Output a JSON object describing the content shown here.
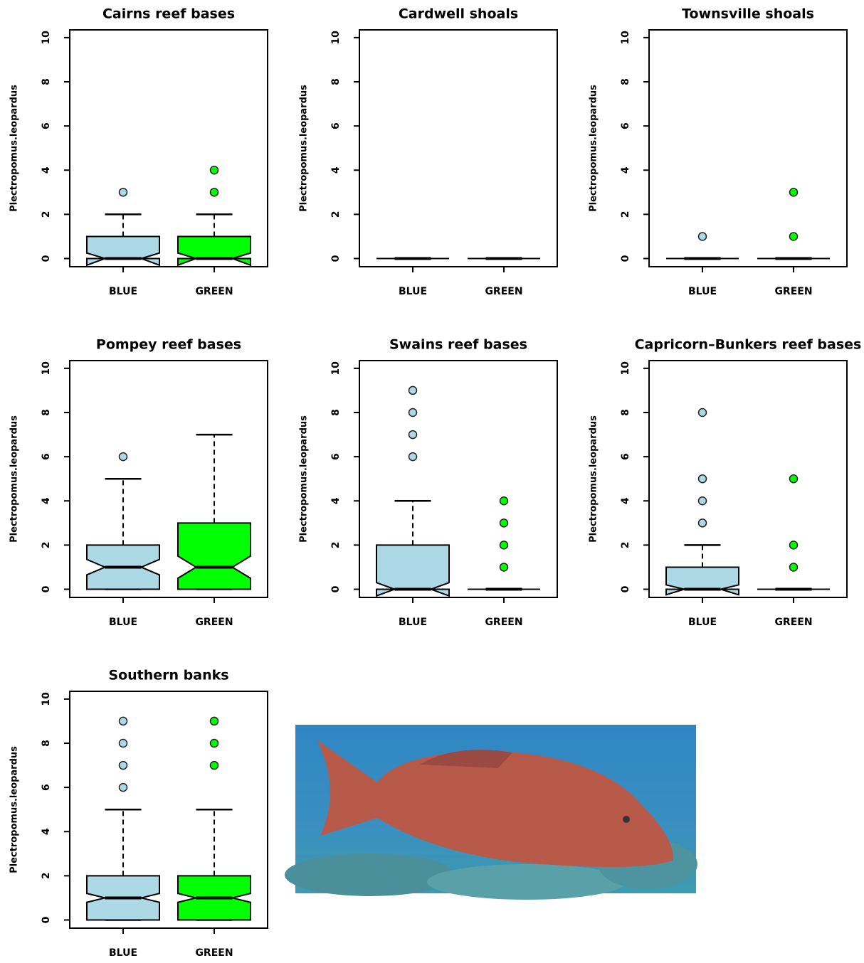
{
  "chart_data": [
    {
      "type": "box",
      "title": "Cairns reef bases",
      "ylabel": "Plectropomus.leopardus",
      "ylim": [
        -0.37,
        10.35
      ],
      "yticks": [
        0,
        2,
        4,
        6,
        8,
        10
      ],
      "series": [
        {
          "name": "BLUE",
          "color": "#add8e6",
          "whisker_low": 0,
          "q1": 0,
          "median": 0,
          "q3": 1,
          "whisker_high": 2,
          "notch_low": -0.3,
          "notch_high": 0.25,
          "outliers": [
            3
          ]
        },
        {
          "name": "GREEN",
          "color": "#00ff00",
          "whisker_low": 0,
          "q1": 0,
          "median": 0,
          "q3": 1,
          "whisker_high": 2,
          "notch_low": -0.3,
          "notch_high": 0.25,
          "outliers": [
            4,
            3
          ]
        }
      ]
    },
    {
      "type": "box",
      "title": "Cardwell shoals",
      "ylabel": "Plectropomus.leopardus",
      "ylim": [
        -0.37,
        10.35
      ],
      "yticks": [
        0,
        2,
        4,
        6,
        8,
        10
      ],
      "series": [
        {
          "name": "BLUE",
          "color": "#add8e6",
          "whisker_low": 0,
          "q1": 0,
          "median": 0,
          "q3": 0,
          "whisker_high": 0,
          "notch_low": 0,
          "notch_high": 0,
          "outliers": []
        },
        {
          "name": "GREEN",
          "color": "#00ff00",
          "whisker_low": 0,
          "q1": 0,
          "median": 0,
          "q3": 0,
          "whisker_high": 0,
          "notch_low": 0,
          "notch_high": 0,
          "outliers": []
        }
      ]
    },
    {
      "type": "box",
      "title": "Townsville shoals",
      "ylabel": "Plectropomus.leopardus",
      "ylim": [
        -0.37,
        10.35
      ],
      "yticks": [
        0,
        2,
        4,
        6,
        8,
        10
      ],
      "series": [
        {
          "name": "BLUE",
          "color": "#add8e6",
          "whisker_low": 0,
          "q1": 0,
          "median": 0,
          "q3": 0,
          "whisker_high": 0,
          "notch_low": 0,
          "notch_high": 0,
          "outliers": [
            1
          ]
        },
        {
          "name": "GREEN",
          "color": "#00ff00",
          "whisker_low": 0,
          "q1": 0,
          "median": 0,
          "q3": 0,
          "whisker_high": 0,
          "notch_low": 0,
          "notch_high": 0,
          "outliers": [
            3,
            1
          ]
        }
      ]
    },
    {
      "type": "box",
      "title": "Pompey reef bases",
      "ylabel": "Plectropomus.leopardus",
      "ylim": [
        -0.37,
        10.35
      ],
      "yticks": [
        0,
        2,
        4,
        6,
        8,
        10
      ],
      "series": [
        {
          "name": "BLUE",
          "color": "#add8e6",
          "whisker_low": 0,
          "q1": 0,
          "median": 1,
          "q3": 2,
          "whisker_high": 5,
          "notch_low": 0.65,
          "notch_high": 1.35,
          "outliers": [
            6
          ]
        },
        {
          "name": "GREEN",
          "color": "#00ff00",
          "whisker_low": 0,
          "q1": 0,
          "median": 1,
          "q3": 3,
          "whisker_high": 7,
          "notch_low": 0.5,
          "notch_high": 1.5,
          "outliers": []
        }
      ]
    },
    {
      "type": "box",
      "title": "Swains reef bases",
      "ylabel": "Plectropomus.leopardus",
      "ylim": [
        -0.37,
        10.35
      ],
      "yticks": [
        0,
        2,
        4,
        6,
        8,
        10
      ],
      "series": [
        {
          "name": "BLUE",
          "color": "#add8e6",
          "whisker_low": 0,
          "q1": 0,
          "median": 0,
          "q3": 2,
          "whisker_high": 4,
          "notch_low": -0.3,
          "notch_high": 0.3,
          "outliers": [
            9,
            8,
            7,
            6
          ]
        },
        {
          "name": "GREEN",
          "color": "#00ff00",
          "whisker_low": 0,
          "q1": 0,
          "median": 0,
          "q3": 0,
          "whisker_high": 0,
          "notch_low": 0,
          "notch_high": 0,
          "outliers": [
            4,
            3,
            2,
            1
          ]
        }
      ]
    },
    {
      "type": "box",
      "title": "Capricorn–Bunkers reef bases",
      "ylabel": "Plectropomus.leopardus",
      "ylim": [
        -0.37,
        10.35
      ],
      "yticks": [
        0,
        2,
        4,
        6,
        8,
        10
      ],
      "series": [
        {
          "name": "BLUE",
          "color": "#add8e6",
          "whisker_low": 0,
          "q1": 0,
          "median": 0,
          "q3": 1,
          "whisker_high": 2,
          "notch_low": -0.25,
          "notch_high": 0.2,
          "outliers": [
            8,
            5,
            4,
            3
          ]
        },
        {
          "name": "GREEN",
          "color": "#00ff00",
          "whisker_low": 0,
          "q1": 0,
          "median": 0,
          "q3": 0,
          "whisker_high": 0,
          "notch_low": 0,
          "notch_high": 0,
          "outliers": [
            5,
            2,
            1
          ]
        }
      ]
    },
    {
      "type": "box",
      "title": "Southern banks",
      "ylabel": "Plectropomus.leopardus",
      "ylim": [
        -0.37,
        10.35
      ],
      "yticks": [
        0,
        2,
        4,
        6,
        8,
        10
      ],
      "series": [
        {
          "name": "BLUE",
          "color": "#add8e6",
          "whisker_low": 0,
          "q1": 0,
          "median": 1,
          "q3": 2,
          "whisker_high": 5,
          "notch_low": 0.8,
          "notch_high": 1.2,
          "outliers": [
            9,
            8,
            7,
            6
          ]
        },
        {
          "name": "GREEN",
          "color": "#00ff00",
          "whisker_low": 0,
          "q1": 0,
          "median": 1,
          "q3": 2,
          "whisker_high": 5,
          "notch_low": 0.8,
          "notch_high": 1.2,
          "outliers": [
            9,
            8,
            7
          ]
        }
      ]
    }
  ]
}
